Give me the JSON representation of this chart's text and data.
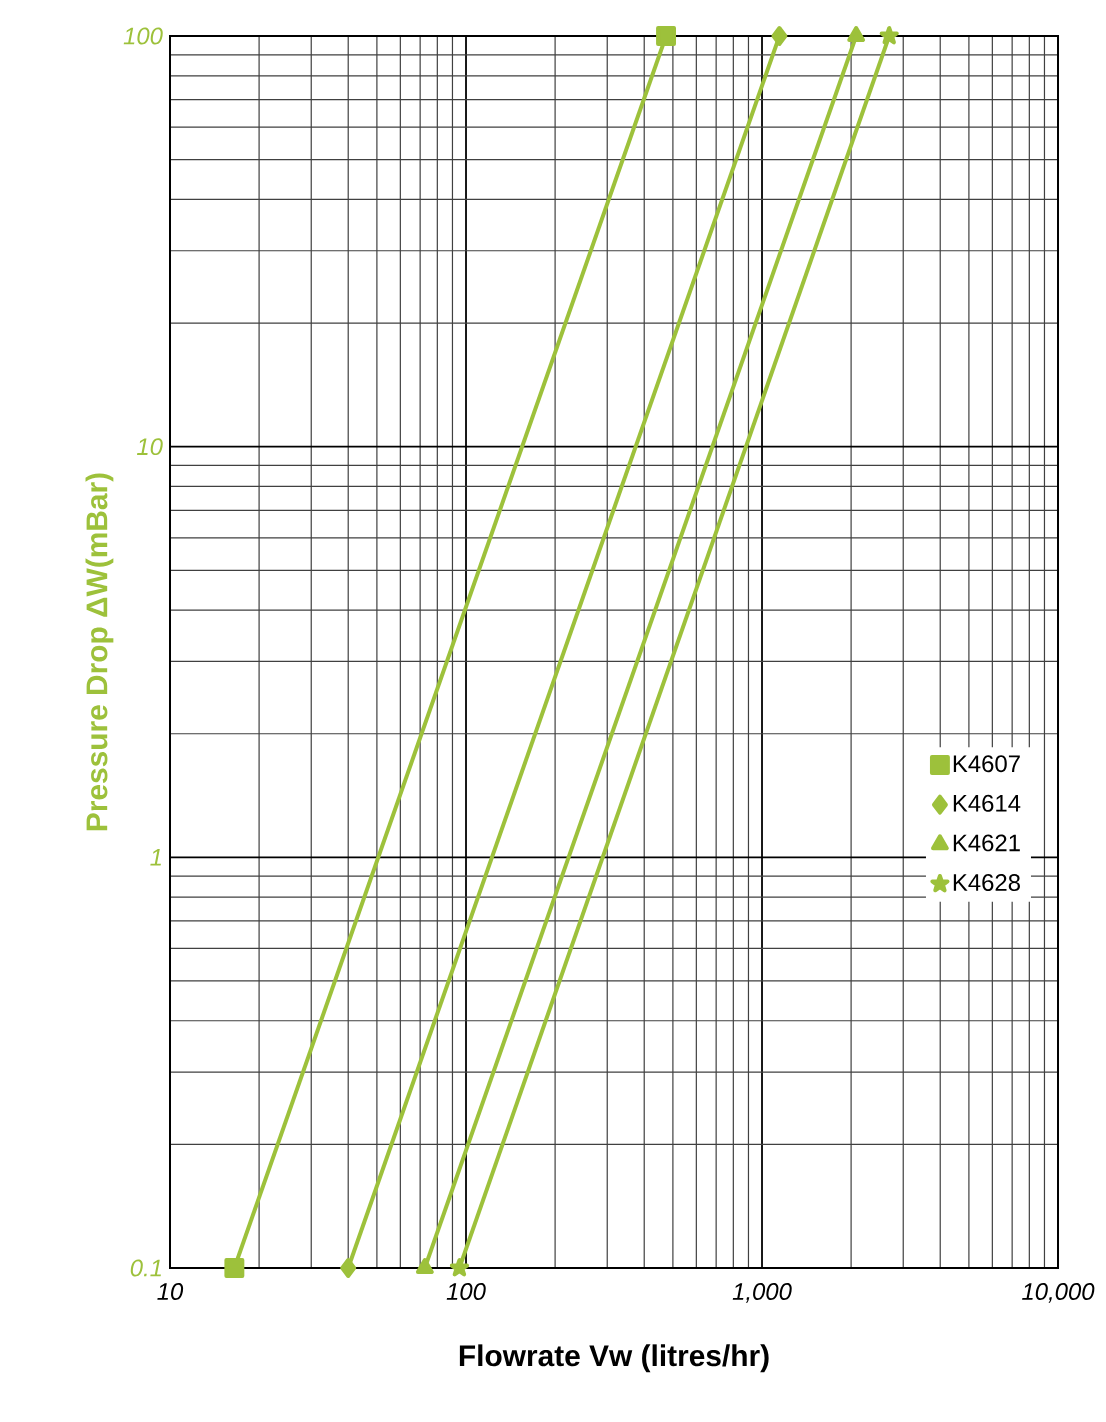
{
  "chart_data": {
    "type": "line",
    "xlabel": "Flowrate Vw (litres/hr)",
    "ylabel": "Pressure Drop ΔW(mBar)",
    "log": "xy",
    "grid": true,
    "legend": "right",
    "line_style": "solid",
    "xlim": [
      10,
      10000
    ],
    "ylim": [
      0.1,
      100
    ],
    "xticks": [
      10,
      100,
      {
        "value": 1000,
        "label": "1,000"
      },
      {
        "value": 10000,
        "label": "10,000"
      }
    ],
    "yticks": [
      0.1,
      1,
      10,
      100
    ],
    "series": [
      {
        "name": "K4607",
        "color": "#9dc13b",
        "marker": "square",
        "x": [
          16.5,
          474
        ],
        "values": [
          0.1,
          100
        ]
      },
      {
        "name": "K4614",
        "color": "#9dc13b",
        "marker": "diamond",
        "x": [
          40,
          1145
        ],
        "values": [
          0.1,
          100
        ]
      },
      {
        "name": "K4621",
        "color": "#9dc13b",
        "marker": "triangle",
        "x": [
          72.6,
          2080
        ],
        "values": [
          0.1,
          100
        ]
      },
      {
        "name": "K4628",
        "color": "#9dc13b",
        "marker": "star",
        "x": [
          95,
          2690
        ],
        "values": [
          0.1,
          100
        ]
      }
    ]
  }
}
